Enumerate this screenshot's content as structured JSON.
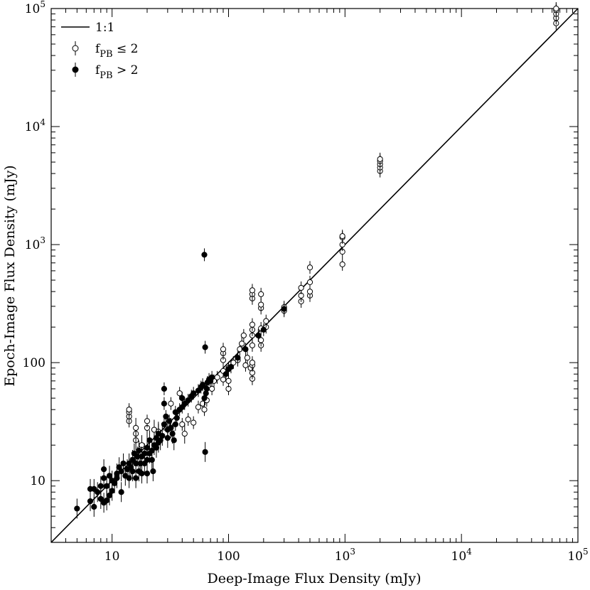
{
  "chart_data": {
    "type": "scatter",
    "xlabel": "Deep-Image Flux Density (mJy)",
    "ylabel": "Epoch-Image Flux Density (mJy)",
    "xscale": "log",
    "yscale": "log",
    "xlim": [
      3,
      100000
    ],
    "ylim": [
      3,
      100000
    ],
    "grid": false,
    "legend_placement": "top-left",
    "x_ticks": [
      {
        "value": 10,
        "base": "10",
        "exp": ""
      },
      {
        "value": 100,
        "base": "100",
        "exp": ""
      },
      {
        "value": 1000,
        "base": "10",
        "exp": "3"
      },
      {
        "value": 10000,
        "base": "10",
        "exp": "4"
      },
      {
        "value": 100000,
        "base": "10",
        "exp": "5"
      }
    ],
    "y_ticks": [
      {
        "value": 10,
        "base": "10",
        "exp": ""
      },
      {
        "value": 100,
        "base": "100",
        "exp": ""
      },
      {
        "value": 1000,
        "base": "10",
        "exp": "3"
      },
      {
        "value": 10000,
        "base": "10",
        "exp": "4"
      },
      {
        "value": 100000,
        "base": "10",
        "exp": "5"
      }
    ],
    "legend": [
      {
        "kind": "line",
        "label": "1:1",
        "sub": "",
        "rest": ""
      },
      {
        "kind": "open",
        "label": "f",
        "sub": "PB",
        "rest": " ≤ 2"
      },
      {
        "kind": "filled",
        "label": "f",
        "sub": "PB",
        "rest": " > 2"
      }
    ],
    "reference_line": {
      "label": "1:1",
      "from": 3,
      "to": 100000
    },
    "series": [
      {
        "name": "fPB ≤ 2",
        "marker": "open-circle",
        "points": [
          [
            14,
            32
          ],
          [
            14,
            35
          ],
          [
            14,
            38
          ],
          [
            14,
            40
          ],
          [
            16,
            22
          ],
          [
            16,
            25
          ],
          [
            16,
            28
          ],
          [
            18,
            20
          ],
          [
            20,
            28
          ],
          [
            20,
            32
          ],
          [
            23,
            27
          ],
          [
            25,
            26
          ],
          [
            30,
            30
          ],
          [
            32,
            45
          ],
          [
            38,
            55
          ],
          [
            40,
            30
          ],
          [
            42,
            25
          ],
          [
            45,
            33
          ],
          [
            50,
            31
          ],
          [
            55,
            42
          ],
          [
            60,
            45
          ],
          [
            62,
            40
          ],
          [
            65,
            48
          ],
          [
            72,
            60
          ],
          [
            75,
            70
          ],
          [
            80,
            75
          ],
          [
            90,
            72
          ],
          [
            90,
            85
          ],
          [
            90,
            105
          ],
          [
            90,
            120
          ],
          [
            90,
            130
          ],
          [
            100,
            60
          ],
          [
            100,
            70
          ],
          [
            100,
            90
          ],
          [
            110,
            100
          ],
          [
            120,
            105
          ],
          [
            125,
            130
          ],
          [
            130,
            145
          ],
          [
            135,
            170
          ],
          [
            140,
            95
          ],
          [
            145,
            110
          ],
          [
            155,
            90
          ],
          [
            160,
            73
          ],
          [
            160,
            82
          ],
          [
            160,
            95
          ],
          [
            160,
            100
          ],
          [
            160,
            140
          ],
          [
            160,
            170
          ],
          [
            160,
            190
          ],
          [
            160,
            210
          ],
          [
            160,
            350
          ],
          [
            160,
            380
          ],
          [
            160,
            410
          ],
          [
            190,
            140
          ],
          [
            190,
            155
          ],
          [
            190,
            195
          ],
          [
            190,
            290
          ],
          [
            190,
            310
          ],
          [
            190,
            380
          ],
          [
            210,
            200
          ],
          [
            210,
            225
          ],
          [
            300,
            275
          ],
          [
            300,
            295
          ],
          [
            420,
            330
          ],
          [
            420,
            370
          ],
          [
            420,
            430
          ],
          [
            500,
            370
          ],
          [
            500,
            400
          ],
          [
            500,
            480
          ],
          [
            500,
            640
          ],
          [
            950,
            680
          ],
          [
            950,
            870
          ],
          [
            950,
            1000
          ],
          [
            950,
            1150
          ],
          [
            950,
            1180
          ],
          [
            2000,
            4200
          ],
          [
            2000,
            4500
          ],
          [
            2000,
            4800
          ],
          [
            2000,
            5100
          ],
          [
            2000,
            5300
          ],
          [
            65000,
            75000
          ],
          [
            65000,
            83000
          ],
          [
            65000,
            90000
          ],
          [
            65000,
            97000
          ],
          [
            65000,
            100000
          ]
        ]
      },
      {
        "name": "fPB > 2",
        "marker": "filled-circle",
        "points": [
          [
            5,
            5.8
          ],
          [
            6.5,
            6.7
          ],
          [
            6.5,
            8.5
          ],
          [
            7,
            6
          ],
          [
            7,
            8.5
          ],
          [
            7.5,
            8
          ],
          [
            8,
            7
          ],
          [
            8,
            9
          ],
          [
            8.5,
            6.5
          ],
          [
            8.5,
            10.5
          ],
          [
            8.5,
            12.5
          ],
          [
            9,
            6.8
          ],
          [
            9,
            9
          ],
          [
            9.5,
            11
          ],
          [
            9.5,
            7.5
          ],
          [
            10,
            8.2
          ],
          [
            10,
            10
          ],
          [
            10.5,
            9.5
          ],
          [
            11,
            10.5
          ],
          [
            11,
            11.5
          ],
          [
            11.5,
            13
          ],
          [
            12,
            8
          ],
          [
            12,
            12
          ],
          [
            12.5,
            14
          ],
          [
            13,
            11
          ],
          [
            13.5,
            12.5
          ],
          [
            14,
            10.5
          ],
          [
            14,
            14
          ],
          [
            14.5,
            13
          ],
          [
            15,
            12
          ],
          [
            15,
            15
          ],
          [
            15.5,
            17
          ],
          [
            16,
            10.5
          ],
          [
            16,
            14
          ],
          [
            16.5,
            16
          ],
          [
            17,
            12
          ],
          [
            17,
            18
          ],
          [
            17.5,
            14
          ],
          [
            18,
            11.5
          ],
          [
            18,
            16
          ],
          [
            19,
            17
          ],
          [
            19,
            14
          ],
          [
            20,
            11.5
          ],
          [
            20,
            15
          ],
          [
            20,
            19
          ],
          [
            21,
            17
          ],
          [
            21,
            22
          ],
          [
            22,
            15
          ],
          [
            22,
            18
          ],
          [
            22.5,
            12
          ],
          [
            23,
            20
          ],
          [
            24,
            19
          ],
          [
            24,
            23
          ],
          [
            25,
            21
          ],
          [
            25,
            25
          ],
          [
            26,
            22
          ],
          [
            27,
            24
          ],
          [
            28,
            60
          ],
          [
            28,
            45
          ],
          [
            28,
            30
          ],
          [
            29,
            35
          ],
          [
            30,
            23
          ],
          [
            30,
            27
          ],
          [
            31,
            32
          ],
          [
            32,
            28
          ],
          [
            33,
            25
          ],
          [
            34,
            22
          ],
          [
            35,
            30
          ],
          [
            35,
            38
          ],
          [
            36,
            34
          ],
          [
            38,
            40
          ],
          [
            40,
            42
          ],
          [
            40,
            50
          ],
          [
            42,
            45
          ],
          [
            45,
            48
          ],
          [
            48,
            52
          ],
          [
            50,
            55
          ],
          [
            55,
            58
          ],
          [
            58,
            62
          ],
          [
            60,
            65
          ],
          [
            62,
            50
          ],
          [
            64,
            55
          ],
          [
            65,
            60
          ],
          [
            66,
            68
          ],
          [
            68,
            72
          ],
          [
            70,
            70
          ],
          [
            72,
            75
          ],
          [
            62,
            820
          ],
          [
            63,
            135
          ],
          [
            63,
            17.5
          ],
          [
            95,
            80
          ],
          [
            100,
            88
          ],
          [
            105,
            92
          ],
          [
            120,
            110
          ],
          [
            140,
            130
          ],
          [
            180,
            170
          ],
          [
            200,
            190
          ],
          [
            300,
            285
          ]
        ]
      }
    ]
  }
}
